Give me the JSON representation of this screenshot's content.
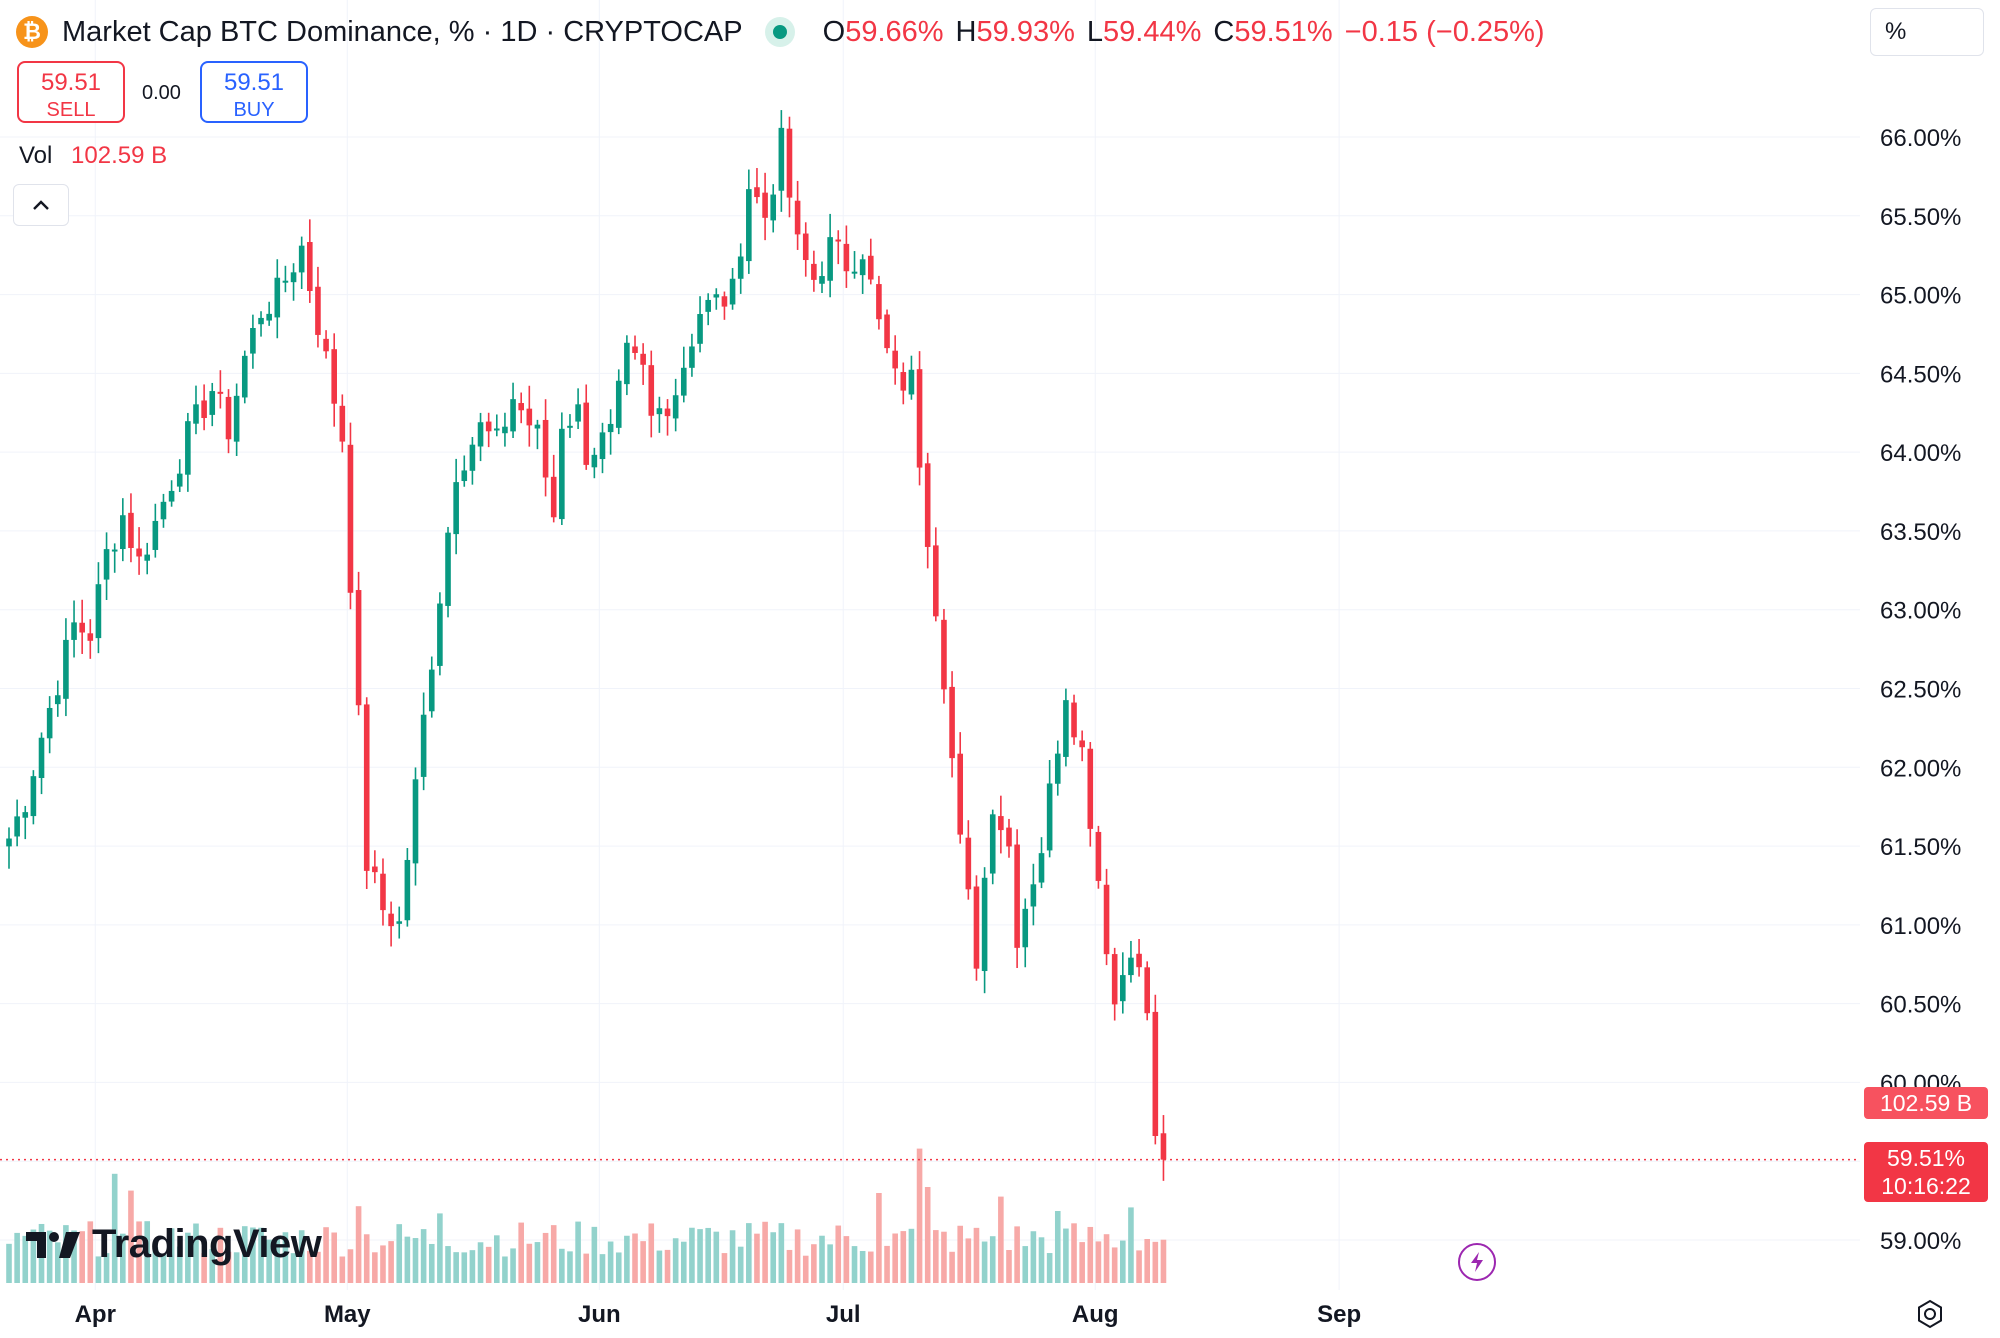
{
  "header": {
    "coin_glyph": "₿",
    "title": "Market Cap BTC Dominance, % · 1D · CRYPTOCAP",
    "ohlc": [
      {
        "key": "O",
        "value": "59.66%"
      },
      {
        "key": "H",
        "value": "59.93%"
      },
      {
        "key": "L",
        "value": "59.44%"
      },
      {
        "key": "C",
        "value": "59.51%"
      }
    ],
    "change": "−0.15 (−0.25%)",
    "unit_toggle": "%"
  },
  "trade": {
    "sell_price": "59.51",
    "sell_label": "SELL",
    "spread": "0.00",
    "buy_price": "59.51",
    "buy_label": "BUY"
  },
  "volume_legend": {
    "label": "Vol",
    "value": "102.59 B"
  },
  "tags": {
    "volume": "102.59 B",
    "last_price": "59.51%",
    "countdown": "10:16:22"
  },
  "logo": {
    "text": "TradingView"
  },
  "icons": {
    "coin": "bitcoin-icon",
    "live": "live-dot-icon",
    "collapse": "chevron-up-icon",
    "bolt": "lightning-icon",
    "settings": "settings-icon"
  },
  "colors": {
    "up": "#089981",
    "down": "#f23645",
    "volume_up": "#92d2cc",
    "volume_down": "#f7a9a7",
    "accent": "#2962ff"
  },
  "chart_data": {
    "type": "candlestick",
    "title": "Market Cap BTC Dominance, %",
    "interval": "1D",
    "y_axis": {
      "unit": "%",
      "range": [
        58.85,
        66.45
      ],
      "ticks": [
        "59.00%",
        "59.50%",
        "60.00%",
        "60.50%",
        "61.00%",
        "61.50%",
        "62.00%",
        "62.50%",
        "63.00%",
        "63.50%",
        "64.00%",
        "64.50%",
        "65.00%",
        "65.50%",
        "66.00%"
      ]
    },
    "x_axis": {
      "labels": [
        "Apr",
        "May",
        "Jun",
        "Jul",
        "Aug",
        "Sep"
      ],
      "label_index": [
        2,
        33,
        64,
        94,
        125,
        155
      ]
    },
    "last_value": 59.51,
    "waypoints": [
      [
        0,
        61.55
      ],
      [
        2,
        61.8
      ],
      [
        4,
        62.2
      ],
      [
        8,
        62.9
      ],
      [
        10,
        62.85
      ],
      [
        12,
        63.35
      ],
      [
        14,
        63.6
      ],
      [
        16,
        63.3
      ],
      [
        18,
        63.55
      ],
      [
        22,
        64.1
      ],
      [
        25,
        64.4
      ],
      [
        27,
        64.15
      ],
      [
        29,
        64.6
      ],
      [
        31,
        64.9
      ],
      [
        33,
        65.0
      ],
      [
        36,
        65.3
      ],
      [
        41,
        64.1
      ],
      [
        44,
        61.4
      ],
      [
        46,
        61.1
      ],
      [
        48,
        61.0
      ],
      [
        51,
        62.3
      ],
      [
        55,
        63.9
      ],
      [
        58,
        64.15
      ],
      [
        60,
        64.05
      ],
      [
        62,
        64.35
      ],
      [
        65,
        64.1
      ],
      [
        67,
        63.6
      ],
      [
        68,
        64.2
      ],
      [
        70,
        64.25
      ],
      [
        71,
        64.0
      ],
      [
        74,
        64.1
      ],
      [
        76,
        64.6
      ],
      [
        78,
        64.5
      ],
      [
        79,
        64.2
      ],
      [
        82,
        64.4
      ],
      [
        85,
        64.9
      ],
      [
        87,
        64.95
      ],
      [
        89,
        65.0
      ],
      [
        91,
        65.7
      ],
      [
        93,
        65.5
      ],
      [
        95,
        65.95
      ],
      [
        97,
        65.3
      ],
      [
        99,
        65.1
      ],
      [
        101,
        65.3
      ],
      [
        103,
        65.2
      ],
      [
        105,
        65.3
      ],
      [
        107,
        64.8
      ],
      [
        109,
        64.45
      ],
      [
        111,
        64.45
      ],
      [
        113,
        63.5
      ],
      [
        115,
        62.6
      ],
      [
        117,
        61.5
      ],
      [
        119,
        60.8
      ],
      [
        121,
        61.8
      ],
      [
        123,
        61.5
      ],
      [
        124,
        60.95
      ],
      [
        127,
        61.5
      ],
      [
        130,
        62.5
      ],
      [
        132,
        62.1
      ],
      [
        134,
        61.3
      ],
      [
        136,
        60.5
      ],
      [
        138,
        60.9
      ],
      [
        140,
        60.45
      ],
      [
        141,
        60.35
      ],
      [
        142,
        59.51
      ]
    ],
    "volume": {
      "unit": "B",
      "last": 102.59,
      "spikes": [
        [
          13,
          4.55
        ],
        [
          15,
          3.85
        ],
        [
          43,
          3.2
        ],
        [
          53,
          2.9
        ],
        [
          107,
          3.75
        ],
        [
          112,
          5.6
        ],
        [
          113,
          4.0
        ],
        [
          122,
          3.6
        ],
        [
          129,
          3.0
        ],
        [
          138,
          3.15
        ]
      ]
    }
  }
}
